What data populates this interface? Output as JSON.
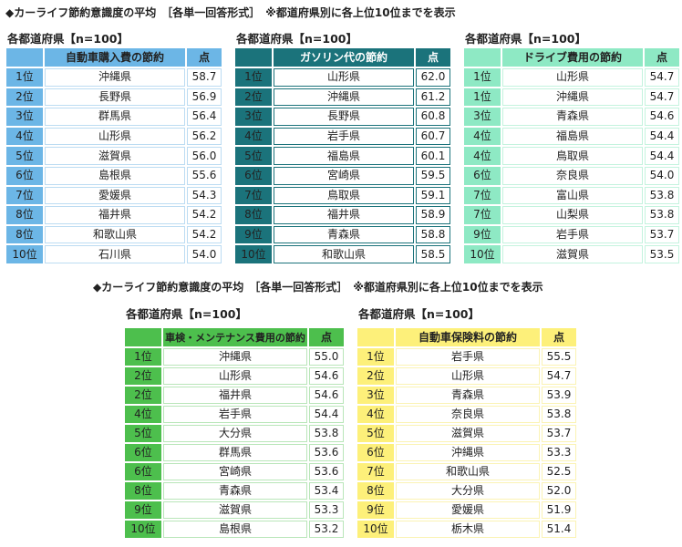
{
  "title": "◆カーライフ節約意識度の平均　［各単一回答形式］　※都道府県別に各上位10位までを表示",
  "tables": [
    {
      "subtitle": "各都道府県【n=100】",
      "header": "自動車購入費の節約",
      "score_label": "点",
      "color": "#6cb6e6",
      "border": "#bcdcf2",
      "rows": [
        [
          "1位",
          "沖縄県",
          "58.7"
        ],
        [
          "2位",
          "長野県",
          "56.9"
        ],
        [
          "3位",
          "群馬県",
          "56.4"
        ],
        [
          "4位",
          "山形県",
          "56.2"
        ],
        [
          "5位",
          "滋賀県",
          "56.0"
        ],
        [
          "6位",
          "島根県",
          "55.6"
        ],
        [
          "7位",
          "愛媛県",
          "54.3"
        ],
        [
          "8位",
          "福井県",
          "54.2"
        ],
        [
          "8位",
          "和歌山県",
          "54.2"
        ],
        [
          "10位",
          "石川県",
          "54.0"
        ]
      ]
    },
    {
      "subtitle": "各都道府県【n=100】",
      "header": "ガソリン代の節約",
      "score_label": "点",
      "color": "#1b737b",
      "border": "#1b737b",
      "rows": [
        [
          "1位",
          "山形県",
          "62.0"
        ],
        [
          "2位",
          "沖縄県",
          "61.2"
        ],
        [
          "3位",
          "長野県",
          "60.8"
        ],
        [
          "4位",
          "岩手県",
          "60.7"
        ],
        [
          "5位",
          "福島県",
          "60.1"
        ],
        [
          "6位",
          "宮崎県",
          "59.5"
        ],
        [
          "7位",
          "鳥取県",
          "59.1"
        ],
        [
          "8位",
          "福井県",
          "58.9"
        ],
        [
          "9位",
          "青森県",
          "58.8"
        ],
        [
          "10位",
          "和歌山県",
          "58.5"
        ]
      ]
    },
    {
      "subtitle": "各都道府県【n=100】",
      "header": "ドライブ費用の節約",
      "score_label": "点",
      "color": "#8ee9c4",
      "border": "#c4f3de",
      "rows": [
        [
          "1位",
          "山形県",
          "54.7"
        ],
        [
          "1位",
          "沖縄県",
          "54.7"
        ],
        [
          "3位",
          "青森県",
          "54.6"
        ],
        [
          "4位",
          "福島県",
          "54.4"
        ],
        [
          "4位",
          "鳥取県",
          "54.4"
        ],
        [
          "6位",
          "奈良県",
          "54.0"
        ],
        [
          "7位",
          "富山県",
          "53.8"
        ],
        [
          "7位",
          "山梨県",
          "53.8"
        ],
        [
          "9位",
          "岩手県",
          "53.7"
        ],
        [
          "10位",
          "滋賀県",
          "53.5"
        ]
      ]
    },
    {
      "subtitle": "各都道府県【n=100】",
      "header": "車検・メンテナンス費用の節約",
      "score_label": "点",
      "color": "#4dbf4d",
      "border": "#b9e6b9",
      "rows": [
        [
          "1位",
          "沖縄県",
          "55.0"
        ],
        [
          "2位",
          "山形県",
          "54.6"
        ],
        [
          "2位",
          "福井県",
          "54.6"
        ],
        [
          "4位",
          "岩手県",
          "54.4"
        ],
        [
          "5位",
          "大分県",
          "53.8"
        ],
        [
          "6位",
          "群馬県",
          "53.6"
        ],
        [
          "6位",
          "宮崎県",
          "53.6"
        ],
        [
          "8位",
          "青森県",
          "53.4"
        ],
        [
          "9位",
          "滋賀県",
          "53.3"
        ],
        [
          "10位",
          "島根県",
          "53.2"
        ]
      ]
    },
    {
      "subtitle": "各都道府県【n=100】",
      "header": "自動車保険料の節約",
      "score_label": "点",
      "color": "#fdf07a",
      "border": "#fbf3b4",
      "rows": [
        [
          "1位",
          "岩手県",
          "55.5"
        ],
        [
          "2位",
          "山形県",
          "54.7"
        ],
        [
          "3位",
          "青森県",
          "53.9"
        ],
        [
          "4位",
          "奈良県",
          "53.8"
        ],
        [
          "5位",
          "滋賀県",
          "53.7"
        ],
        [
          "6位",
          "沖縄県",
          "53.3"
        ],
        [
          "7位",
          "和歌山県",
          "52.5"
        ],
        [
          "8位",
          "大分県",
          "52.0"
        ],
        [
          "9位",
          "愛媛県",
          "51.9"
        ],
        [
          "10位",
          "栃木県",
          "51.4"
        ]
      ]
    }
  ]
}
